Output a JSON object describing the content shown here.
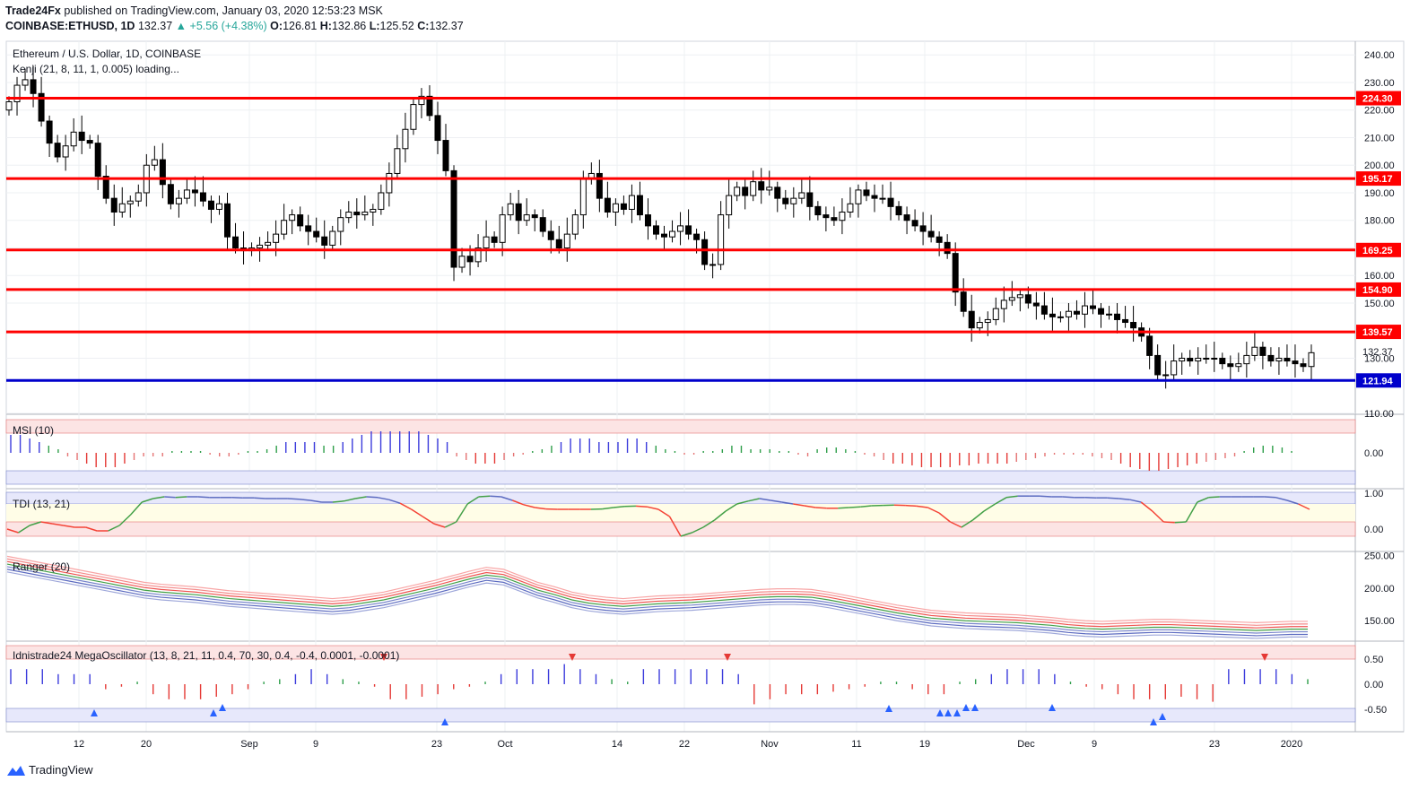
{
  "header": {
    "line1_author": "Trade24Fx",
    "line1_rest": "published on TradingView.com, January 03, 2020 12:53:23 MSK",
    "symbol": "COINBASE:ETHUSD, 1D",
    "last": "132.37",
    "change": "▲ +5.56 (+4.38%)",
    "o_label": "O:",
    "o": "126.81",
    "h_label": "H:",
    "h": "132.86",
    "l_label": "L:",
    "l": "125.52",
    "c_label": "C:",
    "c": "132.37"
  },
  "footer": {
    "brand": "TradingView"
  },
  "colors": {
    "up": "#ffffff",
    "down": "#000000",
    "grid": "#e8ecf1",
    "level_red": "#ff0000",
    "level_blue": "#0000cc",
    "axis_text": "#131722"
  },
  "chart_data": [
    {
      "type": "candlestick",
      "title": "Ethereum / U.S. Dollar, 1D, COINBASE",
      "subtitle": "Kenji (21, 8, 11, 1, 0.005) loading...",
      "y_ticks": [
        "240.00",
        "230.00",
        "220.00",
        "210.00",
        "200.00",
        "190.00",
        "180.00",
        "170.00",
        "160.00",
        "150.00",
        "130.00",
        "110.00"
      ],
      "y_tick_values": [
        240,
        230,
        220,
        210,
        200,
        190,
        180,
        170,
        160,
        150,
        130,
        110
      ],
      "ylim": [
        110,
        243
      ],
      "x_ticks": [
        "12",
        "20",
        "Sep",
        "9",
        "23",
        "Oct",
        "14",
        "22",
        "Nov",
        "11",
        "19",
        "Dec",
        "9",
        "23",
        "2020"
      ],
      "x_tick_dates": [
        "Aug 12",
        "Aug 20",
        "Sep 1",
        "Sep 9",
        "Sep 23",
        "Oct 1",
        "Oct 14",
        "Oct 22",
        "Nov 1",
        "Nov 11",
        "Nov 19",
        "Dec 1",
        "Dec 9",
        "Dec 23",
        "Jan 1"
      ],
      "price_levels": [
        {
          "value": 224.3,
          "label": "224.30",
          "color": "#ff0000"
        },
        {
          "value": 195.17,
          "label": "195.17",
          "color": "#ff0000"
        },
        {
          "value": 169.25,
          "label": "169.25",
          "color": "#ff0000"
        },
        {
          "value": 154.9,
          "label": "154.90",
          "color": "#ff0000"
        },
        {
          "value": 139.57,
          "label": "139.57",
          "color": "#ff0000"
        },
        {
          "value": 121.94,
          "label": "121.94",
          "color": "#0000cc"
        }
      ],
      "last_price_label": "132.37",
      "closes": [
        223,
        229,
        231,
        226,
        216,
        208,
        203,
        207,
        212,
        209,
        208,
        196,
        188,
        183,
        186,
        187,
        190,
        200,
        202,
        193,
        186,
        188,
        191,
        190,
        187,
        184,
        186,
        174,
        170,
        169,
        170,
        171,
        172,
        175,
        180,
        182,
        178,
        176,
        174,
        171,
        176,
        181,
        183,
        182,
        183,
        184,
        190,
        197,
        206,
        213,
        222,
        225,
        218,
        209,
        198,
        163,
        167,
        165,
        170,
        174,
        172,
        182,
        186,
        180,
        182,
        181,
        176,
        173,
        170,
        175,
        182,
        195,
        197,
        188,
        183,
        186,
        184,
        189,
        182,
        178,
        175,
        174,
        176,
        178,
        175,
        173,
        164,
        164,
        182,
        189,
        192,
        189,
        194,
        191,
        192,
        188,
        186,
        188,
        190,
        185,
        182,
        181,
        180,
        183,
        186,
        191,
        189,
        188,
        188,
        185,
        182,
        180,
        178,
        176,
        174,
        172,
        168,
        154,
        147,
        141,
        143,
        144,
        148,
        151,
        152,
        153,
        150,
        149,
        146,
        145,
        145,
        147,
        146,
        149,
        148,
        146,
        146,
        144,
        143,
        141,
        138,
        131,
        124,
        124,
        129,
        130,
        129,
        130,
        130,
        130,
        128,
        127,
        128,
        131,
        134,
        131,
        129,
        130,
        129,
        128,
        127,
        132
      ]
    },
    {
      "type": "bar",
      "title": "MSI (10)",
      "y_ticks": [
        "0.00"
      ],
      "ylim": [
        -1,
        1
      ],
      "values": [
        0.5,
        0.5,
        0.4,
        0.3,
        0.2,
        0.1,
        -0.1,
        -0.2,
        -0.3,
        -0.4,
        -0.4,
        -0.4,
        -0.3,
        -0.2,
        -0.1,
        -0.1,
        -0.1,
        0.05,
        0.05,
        0.05,
        0.05,
        -0.05,
        -0.1,
        -0.1,
        -0.05,
        0.05,
        0.05,
        0.1,
        0.2,
        0.3,
        0.3,
        0.3,
        0.3,
        0.2,
        0.2,
        0.3,
        0.4,
        0.5,
        0.6,
        0.6,
        0.6,
        0.6,
        0.6,
        0.6,
        0.5,
        0.4,
        0.3,
        -0.1,
        -0.2,
        -0.3,
        -0.3,
        -0.3,
        -0.2,
        -0.1,
        -0.05,
        0.05,
        0.1,
        0.2,
        0.3,
        0.4,
        0.4,
        0.4,
        0.3,
        0.3,
        0.3,
        0.4,
        0.4,
        0.3,
        0.2,
        0.1,
        0.05,
        -0.05,
        -0.05,
        0.05,
        0.05,
        0.1,
        0.2,
        0.2,
        0.1,
        0.1,
        0.1,
        0.05,
        0.05,
        -0.05,
        -0.1,
        0.1,
        0.15,
        0.15,
        0.1,
        0.05,
        -0.05,
        -0.1,
        -0.2,
        -0.3,
        -0.3,
        -0.35,
        -0.4,
        -0.4,
        -0.4,
        -0.4,
        -0.35,
        -0.35,
        -0.3,
        -0.3,
        -0.3,
        -0.3,
        -0.25,
        -0.2,
        -0.15,
        -0.1,
        -0.05,
        -0.05,
        -0.05,
        -0.05,
        -0.1,
        -0.15,
        -0.2,
        -0.3,
        -0.4,
        -0.45,
        -0.5,
        -0.5,
        -0.45,
        -0.4,
        -0.35,
        -0.3,
        -0.25,
        -0.2,
        -0.15,
        -0.1,
        0.05,
        0.15,
        0.2,
        0.2,
        0.15,
        0.05
      ]
    },
    {
      "type": "line",
      "title": "TDI (13, 21)",
      "y_ticks": [
        "1.00",
        "0.00"
      ],
      "ylim": [
        -0.25,
        1.05
      ],
      "values": [
        0.0,
        -0.1,
        0.1,
        0.2,
        0.15,
        0.1,
        0.05,
        0.05,
        -0.05,
        -0.05,
        0.1,
        0.4,
        0.75,
        0.85,
        0.9,
        0.88,
        0.9,
        0.9,
        0.88,
        0.88,
        0.88,
        0.87,
        0.87,
        0.85,
        0.85,
        0.85,
        0.83,
        0.8,
        0.75,
        0.75,
        0.78,
        0.85,
        0.9,
        0.88,
        0.82,
        0.72,
        0.55,
        0.35,
        0.15,
        0.05,
        0.2,
        0.7,
        0.9,
        0.92,
        0.9,
        0.8,
        0.68,
        0.6,
        0.56,
        0.55,
        0.55,
        0.55,
        0.55,
        0.56,
        0.6,
        0.63,
        0.64,
        0.62,
        0.55,
        0.35,
        -0.2,
        -0.1,
        0.05,
        0.25,
        0.5,
        0.7,
        0.78,
        0.85,
        0.8,
        0.75,
        0.7,
        0.65,
        0.6,
        0.58,
        0.58,
        0.6,
        0.62,
        0.65,
        0.66,
        0.67,
        0.66,
        0.64,
        0.6,
        0.45,
        0.2,
        0.05,
        0.25,
        0.5,
        0.7,
        0.88,
        0.92,
        0.92,
        0.92,
        0.9,
        0.9,
        0.88,
        0.88,
        0.87,
        0.87,
        0.85,
        0.82,
        0.75,
        0.5,
        0.2,
        0.18,
        0.2,
        0.75,
        0.88,
        0.9,
        0.9,
        0.9,
        0.9,
        0.9,
        0.88,
        0.8,
        0.7,
        0.55
      ]
    },
    {
      "type": "line",
      "title": "Ranger (20)",
      "y_ticks": [
        "250.00",
        "200.00",
        "150.00"
      ],
      "ylim": [
        120,
        255
      ],
      "series": [
        {
          "values": [
            235,
            230,
            225,
            220,
            215,
            210,
            205,
            200,
            195,
            192,
            190,
            188,
            185,
            182,
            180,
            178,
            176,
            174,
            172,
            170,
            172,
            176,
            180,
            186,
            192,
            198,
            205,
            212,
            218,
            215,
            205,
            195,
            188,
            180,
            175,
            172,
            170,
            172,
            174,
            175,
            176,
            178,
            180,
            182,
            184,
            185,
            185,
            184,
            180,
            175,
            170,
            165,
            160,
            156,
            152,
            150,
            148,
            147,
            146,
            145,
            143,
            141,
            138,
            136,
            135,
            136,
            137,
            138,
            138,
            137,
            136,
            135,
            134,
            133,
            134,
            135,
            135
          ]
        }
      ]
    },
    {
      "type": "bar",
      "title": "Idnistrade24 MegaOscillator (13, 8, 21, 11, 0.4, 70, 30, 0.4, -0.4, 0.0001, -0.0001)",
      "y_ticks": [
        "0.50",
        "0.00",
        "-0.50"
      ],
      "ylim": [
        -0.75,
        0.75
      ],
      "values": [
        0.3,
        0.3,
        0.3,
        0.2,
        0.2,
        0.2,
        -0.1,
        -0.05,
        0.05,
        -0.2,
        -0.3,
        -0.3,
        -0.3,
        -0.25,
        -0.2,
        -0.1,
        0.05,
        0.1,
        0.2,
        0.3,
        0.2,
        0.1,
        0.05,
        -0.05,
        -0.3,
        -0.3,
        -0.25,
        -0.2,
        -0.1,
        -0.05,
        0.05,
        0.2,
        0.3,
        0.3,
        0.3,
        0.4,
        0.3,
        0.2,
        0.1,
        0.05,
        0.3,
        0.3,
        0.3,
        0.3,
        0.3,
        0.3,
        0.2,
        -0.4,
        -0.3,
        -0.2,
        -0.2,
        -0.2,
        -0.15,
        -0.1,
        -0.05,
        0.05,
        0.05,
        -0.1,
        -0.2,
        -0.2,
        0.05,
        0.1,
        0.2,
        0.3,
        0.3,
        0.3,
        0.2,
        0.05,
        -0.05,
        -0.1,
        -0.2,
        -0.3,
        -0.3,
        -0.3,
        -0.25,
        -0.3,
        -0.35,
        0.3,
        0.3,
        0.3,
        0.3,
        0.2,
        0.1
      ]
    }
  ]
}
